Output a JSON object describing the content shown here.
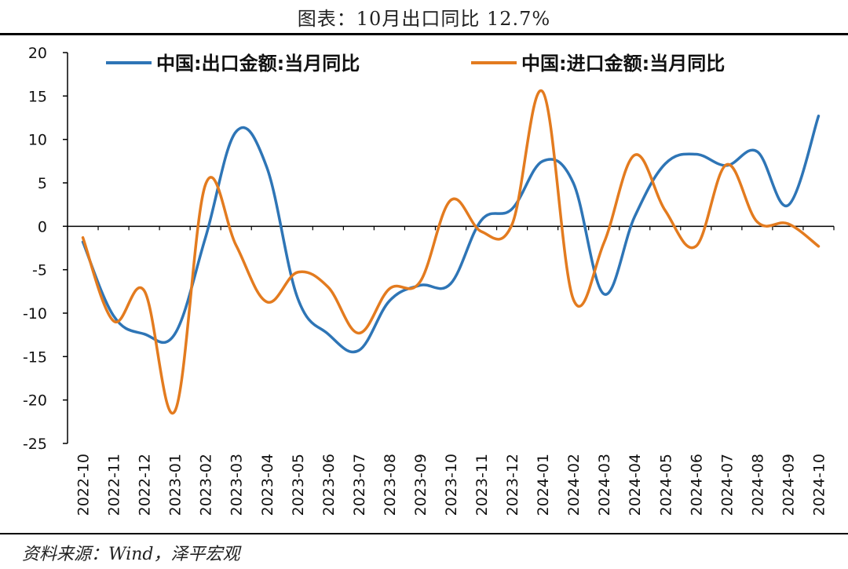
{
  "title": "图表：10月出口同比 12.7%",
  "source": "资料来源：Wind，泽平宏观",
  "chart_data": {
    "type": "line",
    "title": "图表：10月出口同比 12.7%",
    "xlabel": "",
    "ylabel": "",
    "ylim": [
      -25,
      20
    ],
    "yticks": [
      20,
      15,
      10,
      5,
      0,
      -5,
      -10,
      -15,
      -20,
      -25
    ],
    "grid": false,
    "legend_position": "top",
    "categories": [
      "2022-10",
      "2022-11",
      "2022-12",
      "2023-01",
      "2023-02",
      "2023-03",
      "2023-04",
      "2023-05",
      "2023-06",
      "2023-07",
      "2023-08",
      "2023-09",
      "2023-10",
      "2023-11",
      "2023-12",
      "2024-01",
      "2024-02",
      "2024-03",
      "2024-04",
      "2024-05",
      "2024-06",
      "2024-07",
      "2024-08",
      "2024-09",
      "2024-10"
    ],
    "series": [
      {
        "name": "中国:出口金额:当月同比",
        "color": "#2e75b6",
        "values": [
          -1.8,
          -10.3,
          -12.4,
          -12.4,
          -1.3,
          10.9,
          6.8,
          -8.2,
          -12.4,
          -14.3,
          -8.6,
          -6.8,
          -6.6,
          0.7,
          2.0,
          7.5,
          5.0,
          -7.8,
          1.1,
          7.2,
          8.3,
          7.0,
          8.6,
          2.4,
          12.7
        ]
      },
      {
        "name": "中国:进口金额:当月同比",
        "color": "#e37b1f",
        "values": [
          -1.3,
          -10.9,
          -7.4,
          -21.3,
          4.8,
          -2.2,
          -8.7,
          -5.3,
          -7.0,
          -12.3,
          -7.2,
          -6.4,
          3.0,
          -0.6,
          0.2,
          15.5,
          -8.4,
          -1.9,
          8.2,
          1.8,
          -2.3,
          7.1,
          0.5,
          0.3,
          -2.3
        ]
      }
    ]
  }
}
